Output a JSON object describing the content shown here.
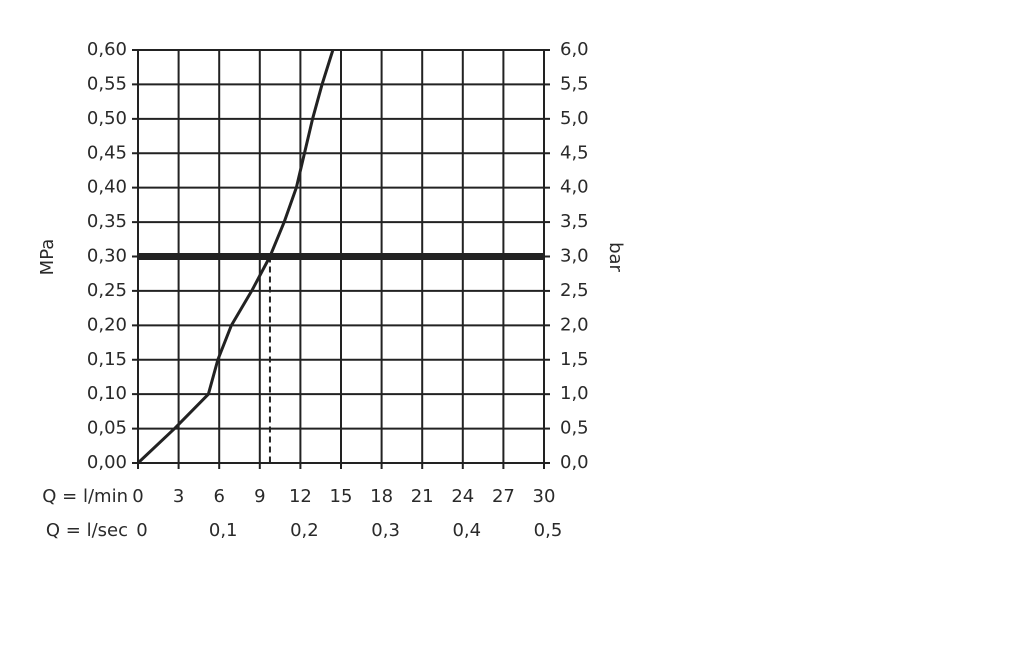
{
  "chart_data": {
    "type": "line",
    "x_label": "Q = l/min",
    "x2_label": "Q = l/sec",
    "y_label": "MPa",
    "y2_label": "bar",
    "x": [
      0,
      2.7,
      5.2,
      5.9,
      6.9,
      8.4,
      9.75,
      10.8,
      11.7,
      12.3,
      12.9,
      13.6,
      14.4
    ],
    "values": [
      0,
      0.05,
      0.1,
      0.15,
      0.2,
      0.25,
      0.3,
      0.35,
      0.4,
      0.45,
      0.5,
      0.55,
      0.6
    ],
    "color": "#222222",
    "xlim": [
      0,
      30
    ],
    "xticks": [
      0,
      3,
      6,
      9,
      12,
      15,
      18,
      21,
      24,
      27,
      30
    ],
    "x2lim": [
      0,
      0.5
    ],
    "x2ticks": [
      0,
      {
        "value": 0.1,
        "label": "0,1"
      },
      {
        "value": 0.2,
        "label": "0,2"
      },
      {
        "value": 0.3,
        "label": "0,3"
      },
      {
        "value": 0.4,
        "label": "0,4"
      },
      {
        "value": 0.5,
        "label": "0,5"
      }
    ],
    "ylim": [
      0,
      0.6
    ],
    "yticks": [
      {
        "value": 0,
        "label": "0,00"
      },
      {
        "value": 0.05,
        "label": "0,05"
      },
      {
        "value": 0.1,
        "label": "0,10"
      },
      {
        "value": 0.15,
        "label": "0,15"
      },
      {
        "value": 0.2,
        "label": "0,20"
      },
      {
        "value": 0.25,
        "label": "0,25"
      },
      {
        "value": 0.3,
        "label": "0,30"
      },
      {
        "value": 0.35,
        "label": "0,35"
      },
      {
        "value": 0.4,
        "label": "0,40"
      },
      {
        "value": 0.45,
        "label": "0,45"
      },
      {
        "value": 0.5,
        "label": "0,50"
      },
      {
        "value": 0.55,
        "label": "0,55"
      },
      {
        "value": 0.6,
        "label": "0,60"
      }
    ],
    "y2lim": [
      0,
      6
    ],
    "y2ticks": [
      {
        "value": 0,
        "label": "0,0"
      },
      {
        "value": 0.5,
        "label": "0,5"
      },
      {
        "value": 1,
        "label": "1,0"
      },
      {
        "value": 1.5,
        "label": "1,5"
      },
      {
        "value": 2,
        "label": "2,0"
      },
      {
        "value": 2.5,
        "label": "2,5"
      },
      {
        "value": 3,
        "label": "3,0"
      },
      {
        "value": 3.5,
        "label": "3,5"
      },
      {
        "value": 4,
        "label": "4,0"
      },
      {
        "value": 4.5,
        "label": "4,5"
      },
      {
        "value": 5,
        "label": "5,0"
      },
      {
        "value": 5.5,
        "label": "5,5"
      },
      {
        "value": 6,
        "label": "6,0"
      }
    ],
    "reference_y": 0.3,
    "reference_x": 9.75,
    "grid": true
  }
}
